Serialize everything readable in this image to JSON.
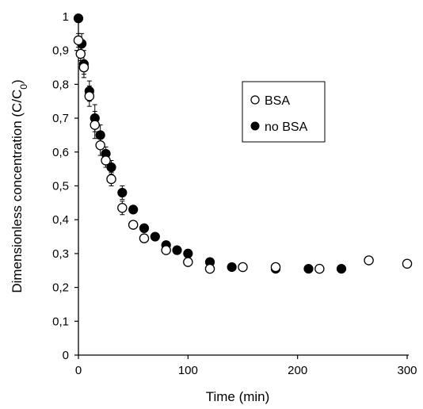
{
  "chart_data": {
    "type": "scatter",
    "xlabel": "Time (min)",
    "ylabel": "Dimensionless concentration (C/C0)",
    "ylabel_main": "Dimensionless concentration (C/C",
    "ylabel_sub": "0",
    "ylabel_end": ")",
    "xlim": [
      0,
      300
    ],
    "ylim": [
      0,
      1
    ],
    "xticks": [
      0,
      100,
      200,
      300
    ],
    "yticks": [
      "0",
      "0,1",
      "0,2",
      "0,3",
      "0,4",
      "0,5",
      "0,6",
      "0,7",
      "0,8",
      "0,9",
      "1"
    ],
    "ytick_values": [
      0,
      0.1,
      0.2,
      0.3,
      0.4,
      0.5,
      0.6,
      0.7,
      0.8,
      0.9,
      1
    ],
    "grid": false,
    "legend_position": "upper-right",
    "series": [
      {
        "name": "BSA",
        "marker": "open-circle",
        "x": [
          0,
          2,
          5,
          10,
          15,
          20,
          25,
          30,
          40,
          50,
          60,
          80,
          100,
          120,
          150,
          180,
          220,
          265,
          300
        ],
        "y": [
          0.93,
          0.89,
          0.85,
          0.765,
          0.68,
          0.62,
          0.575,
          0.52,
          0.435,
          0.385,
          0.345,
          0.31,
          0.275,
          0.255,
          0.26,
          0.26,
          0.255,
          0.28,
          0.27
        ],
        "error": [
          0.02,
          0.02,
          0.02,
          0.03,
          0.04,
          0.03,
          0.02,
          0.02,
          0.02,
          0.01,
          0.01,
          0.01,
          0.01,
          0.005,
          0.005,
          0.005,
          0.005,
          0.005,
          0.005
        ]
      },
      {
        "name": "no BSA",
        "marker": "filled-circle",
        "x": [
          0,
          3,
          5,
          10,
          15,
          20,
          25,
          30,
          40,
          50,
          60,
          70,
          80,
          90,
          100,
          120,
          140,
          180,
          210,
          240
        ],
        "y": [
          0.995,
          0.92,
          0.86,
          0.78,
          0.7,
          0.65,
          0.595,
          0.555,
          0.48,
          0.43,
          0.375,
          0.35,
          0.325,
          0.31,
          0.3,
          0.275,
          0.26,
          0.255,
          0.255,
          0.255
        ],
        "error": [
          0.01,
          0.03,
          0.04,
          0.03,
          0.04,
          0.03,
          0.02,
          0.02,
          0.02,
          0.01,
          0.01,
          0.01,
          0.01,
          0.01,
          0.01,
          0.005,
          0.005,
          0.005,
          0.005,
          0.005
        ]
      }
    ]
  }
}
